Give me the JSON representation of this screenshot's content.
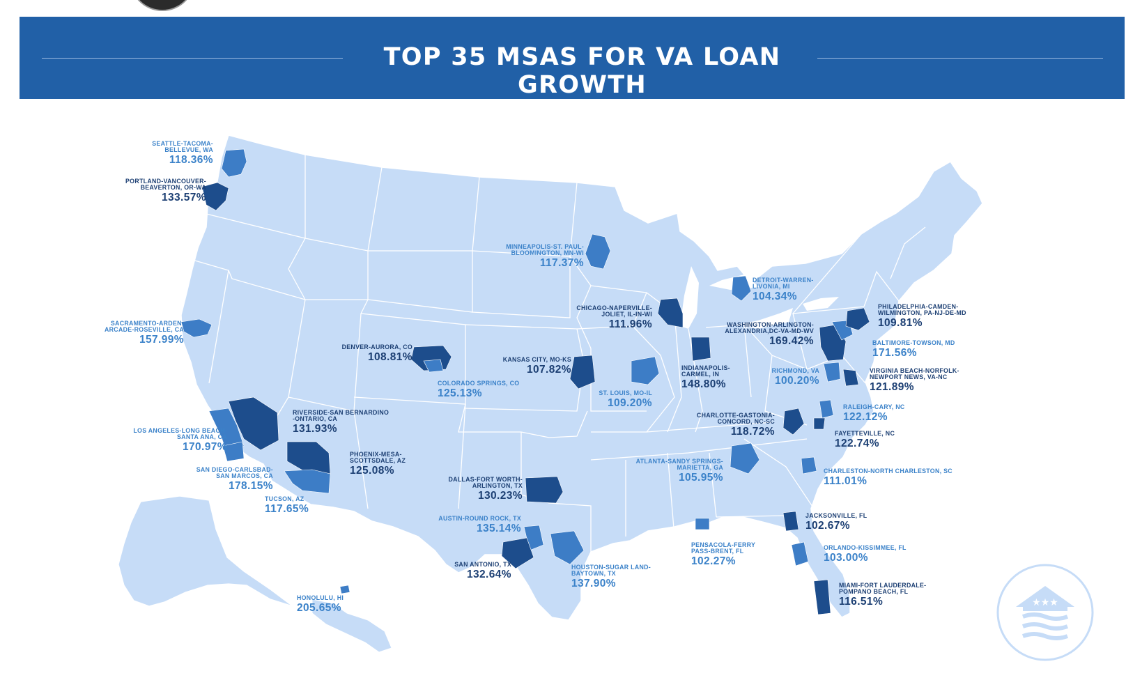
{
  "header": {
    "title": "TOP 35 MSAS FOR VA LOAN GROWTH"
  },
  "colors": {
    "banner": "#2160a7",
    "land": "#c6dcf7",
    "state_border": "#ffffff",
    "msa_medium": "#3d7dc6",
    "msa_dark": "#1d4d8c",
    "label_light": "#3b82c9",
    "label_dark": "#1c3f73"
  },
  "icons": {
    "avatar": "avatar",
    "logo": "house-flag-logo-icon"
  },
  "msas": [
    {
      "id": "seattle",
      "name": "SEATTLE-TACOMA-\nBELLEVUE, WA",
      "growth": "118.36%",
      "shade": "light"
    },
    {
      "id": "portland",
      "name": "PORTLAND-VANCOUVER-\nBEAVERTON, OR-WA",
      "growth": "133.57%",
      "shade": "dark"
    },
    {
      "id": "sacramento",
      "name": "SACRAMENTO-ARDEN-\nARCADE-ROSEVILLE, CA",
      "growth": "157.99%",
      "shade": "light"
    },
    {
      "id": "los-angeles",
      "name": "LOS ANGELES-LONG BEACH-\nSANTA ANA, CA",
      "growth": "170.97%",
      "shade": "light"
    },
    {
      "id": "san-diego",
      "name": "SAN DIEGO-CARLSBAD-\nSAN MARCOS, CA",
      "growth": "178.15%",
      "shade": "light"
    },
    {
      "id": "riverside",
      "name": "RIVERSIDE-SAN BERNARDINO\n-ONTARIO, CA",
      "growth": "131.93%",
      "shade": "dark"
    },
    {
      "id": "phoenix",
      "name": "PHOENIX-MESA-\nSCOTTSDALE, AZ",
      "growth": "125.08%",
      "shade": "dark"
    },
    {
      "id": "tucson",
      "name": "TUCSON, AZ",
      "growth": "117.65%",
      "shade": "light"
    },
    {
      "id": "honolulu",
      "name": "HONOLULU, HI",
      "growth": "205.65%",
      "shade": "light"
    },
    {
      "id": "denver",
      "name": "DENVER-AURORA, CO",
      "growth": "108.81%",
      "shade": "dark"
    },
    {
      "id": "colorado-springs",
      "name": "COLORADO SPRINGS, CO",
      "growth": "125.13%",
      "shade": "light"
    },
    {
      "id": "minneapolis",
      "name": "MINNEAPOLIS-ST. PAUL-\nBLOOMINGTON, MN-WI",
      "growth": "117.37%",
      "shade": "light"
    },
    {
      "id": "kansas-city",
      "name": "KANSAS CITY, MO-KS",
      "growth": "107.82%",
      "shade": "dark"
    },
    {
      "id": "dallas",
      "name": "DALLAS-FORT WORTH-\nARLINGTON, TX",
      "growth": "130.23%",
      "shade": "dark"
    },
    {
      "id": "austin",
      "name": "AUSTIN-ROUND ROCK, TX",
      "growth": "135.14%",
      "shade": "light"
    },
    {
      "id": "san-antonio",
      "name": "SAN ANTONIO, TX",
      "growth": "132.64%",
      "shade": "dark"
    },
    {
      "id": "houston",
      "name": "HOUSTON-SUGAR LAND-\nBAYTOWN, TX",
      "growth": "137.90%",
      "shade": "light"
    },
    {
      "id": "chicago",
      "name": "CHICAGO-NAPERVILLE-\nJOLIET, IL-IN-WI",
      "growth": "111.96%",
      "shade": "dark"
    },
    {
      "id": "st-louis",
      "name": "ST. LOUIS, MO-IL",
      "growth": "109.20%",
      "shade": "light"
    },
    {
      "id": "indianapolis",
      "name": "INDIANAPOLIS-\nCARMEL, IN",
      "growth": "148.80%",
      "shade": "dark"
    },
    {
      "id": "detroit",
      "name": "DETROIT-WARREN-\nLIVONIA, MI",
      "growth": "104.34%",
      "shade": "light"
    },
    {
      "id": "washington",
      "name": "WASHINGTON-ARLINGTON-\nALEXANDRIA,DC-VA-MD-WV",
      "growth": "169.42%",
      "shade": "dark"
    },
    {
      "id": "philadelphia",
      "name": "PHILADELPHIA-CAMDEN-\nWILMINGTON, PA-NJ-DE-MD",
      "growth": "109.81%",
      "shade": "dark"
    },
    {
      "id": "baltimore",
      "name": "BALTIMORE-TOWSON, MD",
      "growth": "171.56%",
      "shade": "light"
    },
    {
      "id": "richmond",
      "name": "RICHMOND, VA",
      "growth": "100.20%",
      "shade": "light"
    },
    {
      "id": "virginia-beach",
      "name": "VIRGINIA BEACH-NORFOLK-\nNEWPORT NEWS, VA-NC",
      "growth": "121.89%",
      "shade": "dark"
    },
    {
      "id": "raleigh",
      "name": "RALEIGH-CARY, NC",
      "growth": "122.12%",
      "shade": "light"
    },
    {
      "id": "charlotte",
      "name": "CHARLOTTE-GASTONIA-\nCONCORD, NC-SC",
      "growth": "118.72%",
      "shade": "dark"
    },
    {
      "id": "fayetteville",
      "name": "FAYETTEVILLE, NC",
      "growth": "122.74%",
      "shade": "dark"
    },
    {
      "id": "atlanta",
      "name": "ATLANTA-SANDY SPRINGS-\nMARIETTA, GA",
      "growth": "105.95%",
      "shade": "light"
    },
    {
      "id": "charleston",
      "name": "CHARLESTON-NORTH CHARLESTON, SC",
      "growth": "111.01%",
      "shade": "light"
    },
    {
      "id": "jacksonville",
      "name": "JACKSONVILLE, FL",
      "growth": "102.67%",
      "shade": "dark"
    },
    {
      "id": "pensacola",
      "name": "PENSACOLA-FERRY\nPASS-BRENT, FL",
      "growth": "102.27%",
      "shade": "light"
    },
    {
      "id": "orlando",
      "name": "ORLANDO-KISSIMMEE, FL",
      "growth": "103.00%",
      "shade": "light"
    },
    {
      "id": "miami",
      "name": "MIAMI-FORT LAUDERDALE-\nPOMPANO BEACH, FL",
      "growth": "116.51%",
      "shade": "dark"
    }
  ]
}
